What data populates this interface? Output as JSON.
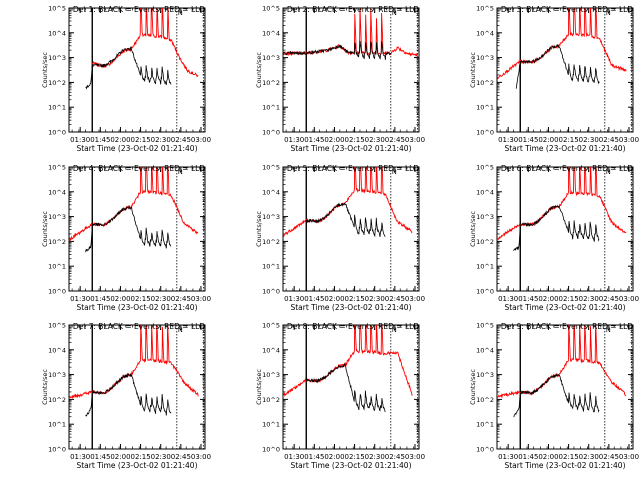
{
  "figure": {
    "panel_titles": [
      "Det 1: BLACK = Events, RED = LLD",
      "Det 2: BLACK = Events, RED = LLD",
      "Det 3: BLACK = Events, RED = LLD",
      "Det 4: BLACK = Events, RED = LLD",
      "Det 5: BLACK = Events, RED = LLD",
      "Det 6: BLACK = Events, RED = LLD",
      "Det 7: BLACK = Events, RED = LLD",
      "Det 8: BLACK = Events, RED = LLD",
      "Det 9: BLACK = Events, RED = LLD"
    ],
    "ylabel": "Counts/sec",
    "xlabel": "Start Time (23-Oct-02 01:21:40)",
    "xtick_labels": [
      "01:30",
      "01:45",
      "02:00",
      "02:15",
      "02:30",
      "02:45",
      "03:00"
    ],
    "ytick_labels": [
      "10^0",
      "10^1",
      "10^2",
      "10^3",
      "10^4",
      "10^5"
    ],
    "marker_labels": [
      "N",
      "N",
      "N",
      "N",
      "N",
      "N",
      "N",
      "N",
      "N"
    ],
    "colors": {
      "events": "#000000",
      "lld": "#ff0000",
      "axes": "#000000"
    }
  },
  "chart_data": {
    "type": "line",
    "layout": "3x3 grid of detector panels",
    "x_scale": "time",
    "x_range": [
      "01:21:40",
      "03:03:00"
    ],
    "y_scale": "log",
    "y_range": [
      1,
      100000
    ],
    "grid": false,
    "vertical_lines": [
      "01:39:00",
      "02:42:00",
      "03:02:00"
    ],
    "series_names": [
      "BLACK = Events",
      "RED = LLD"
    ],
    "panels": [
      {
        "detector": "Det 1",
        "events": {
          "x": [
            "01:34",
            "01:38",
            "01:39",
            "01:48",
            "01:53",
            "02:02",
            "02:08",
            "02:15",
            "02:30",
            "02:38"
          ],
          "y": [
            60,
            90,
            500,
            480,
            700,
            2000,
            2400,
            180,
            150,
            120
          ]
        },
        "lld": {
          "x": [
            "01:39",
            "01:48",
            "01:53",
            "02:02",
            "02:08",
            "02:15",
            "02:30",
            "02:38",
            "02:44",
            "02:50",
            "02:58"
          ],
          "y": [
            600,
            450,
            600,
            1800,
            2200,
            8000,
            7000,
            5000,
            1000,
            300,
            180
          ]
        }
      },
      {
        "detector": "Det 2",
        "events": {
          "x": [
            "01:22",
            "01:39",
            "01:55",
            "02:04",
            "02:10",
            "02:42"
          ],
          "y": [
            1500,
            1500,
            2000,
            3000,
            1600,
            1500
          ]
        },
        "lld": {
          "x": [
            "01:22",
            "01:39",
            "01:55",
            "02:04",
            "02:10",
            "02:42",
            "02:47",
            "02:55",
            "03:02"
          ],
          "y": [
            1500,
            1500,
            2000,
            3000,
            1600,
            1500,
            2500,
            1400,
            1300
          ]
        }
      },
      {
        "detector": "Det 3",
        "events": {
          "x": [
            "01:36",
            "01:39",
            "01:48",
            "01:53",
            "02:02",
            "02:08",
            "02:15",
            "02:30",
            "02:38"
          ],
          "y": [
            50,
            700,
            650,
            900,
            2500,
            3000,
            200,
            170,
            140
          ]
        },
        "lld": {
          "x": [
            "01:22",
            "01:39",
            "01:48",
            "01:53",
            "02:02",
            "02:08",
            "02:15",
            "02:30",
            "02:38",
            "02:47",
            "02:58"
          ],
          "y": [
            150,
            700,
            650,
            900,
            2500,
            3000,
            9000,
            8000,
            6000,
            500,
            300
          ]
        }
      },
      {
        "detector": "Det 4",
        "events": {
          "x": [
            "01:34",
            "01:38",
            "01:39",
            "01:48",
            "01:53",
            "02:02",
            "02:08",
            "02:15",
            "02:30",
            "02:38"
          ],
          "y": [
            40,
            60,
            500,
            450,
            700,
            2000,
            2400,
            120,
            100,
            90
          ]
        },
        "lld": {
          "x": [
            "01:22",
            "01:39",
            "01:48",
            "01:53",
            "02:02",
            "02:08",
            "02:15",
            "02:30",
            "02:38",
            "02:47",
            "02:58"
          ],
          "y": [
            120,
            500,
            450,
            700,
            2000,
            2400,
            10000,
            9000,
            7000,
            600,
            200
          ]
        }
      },
      {
        "detector": "Det 5",
        "events": {
          "x": [
            "01:39",
            "01:48",
            "01:53",
            "02:02",
            "02:08",
            "02:15",
            "02:30",
            "02:38"
          ],
          "y": [
            700,
            650,
            900,
            2800,
            3400,
            350,
            300,
            250
          ]
        },
        "lld": {
          "x": [
            "01:22",
            "01:39",
            "01:48",
            "01:53",
            "02:02",
            "02:08",
            "02:15",
            "02:30",
            "02:38",
            "02:47",
            "02:58"
          ],
          "y": [
            180,
            700,
            650,
            900,
            2800,
            3400,
            12000,
            10000,
            8000,
            600,
            250
          ]
        }
      },
      {
        "detector": "Det 6",
        "events": {
          "x": [
            "01:34",
            "01:38",
            "01:39",
            "01:48",
            "01:53",
            "02:02",
            "02:08",
            "02:15",
            "02:30",
            "02:38"
          ],
          "y": [
            40,
            60,
            500,
            480,
            700,
            2200,
            2600,
            250,
            200,
            170
          ]
        },
        "lld": {
          "x": [
            "01:22",
            "01:39",
            "01:48",
            "01:53",
            "02:02",
            "02:08",
            "02:15",
            "02:30",
            "02:38",
            "02:47",
            "02:58"
          ],
          "y": [
            130,
            500,
            480,
            700,
            2200,
            2600,
            9000,
            8000,
            7000,
            600,
            200
          ]
        }
      },
      {
        "detector": "Det 7",
        "events": {
          "x": [
            "01:34",
            "01:38",
            "01:39",
            "01:48",
            "01:53",
            "02:02",
            "02:08",
            "02:15",
            "02:30",
            "02:38"
          ],
          "y": [
            20,
            40,
            200,
            180,
            280,
            800,
            1000,
            60,
            50,
            40
          ]
        },
        "lld": {
          "x": [
            "01:22",
            "01:39",
            "01:48",
            "01:53",
            "02:02",
            "02:08",
            "02:15",
            "02:30",
            "02:38",
            "02:47",
            "02:58"
          ],
          "y": [
            120,
            200,
            180,
            280,
            800,
            1000,
            4000,
            3500,
            3000,
            500,
            150
          ]
        }
      },
      {
        "detector": "Det 8",
        "events": {
          "x": [
            "01:39",
            "01:48",
            "01:53",
            "02:02",
            "02:08",
            "02:15",
            "02:30",
            "02:38"
          ],
          "y": [
            600,
            550,
            800,
            2000,
            2400,
            80,
            60,
            50
          ]
        },
        "lld": {
          "x": [
            "01:22",
            "01:39",
            "01:48",
            "01:53",
            "02:02",
            "02:08",
            "02:15",
            "02:30",
            "02:38",
            "02:47",
            "02:58"
          ],
          "y": [
            150,
            600,
            550,
            800,
            2000,
            2400,
            9000,
            8000,
            7000,
            8000,
            150
          ]
        }
      },
      {
        "detector": "Det 9",
        "events": {
          "x": [
            "01:34",
            "01:38",
            "01:39",
            "01:48",
            "01:53",
            "02:02",
            "02:08",
            "02:15",
            "02:30",
            "02:38"
          ],
          "y": [
            20,
            40,
            200,
            180,
            280,
            800,
            1000,
            70,
            60,
            50
          ]
        },
        "lld": {
          "x": [
            "01:22",
            "01:39",
            "01:48",
            "01:53",
            "02:02",
            "02:08",
            "02:15",
            "02:30",
            "02:38",
            "02:47",
            "02:58"
          ],
          "y": [
            130,
            200,
            180,
            280,
            800,
            1000,
            4000,
            3500,
            3000,
            500,
            150
          ]
        }
      }
    ]
  }
}
